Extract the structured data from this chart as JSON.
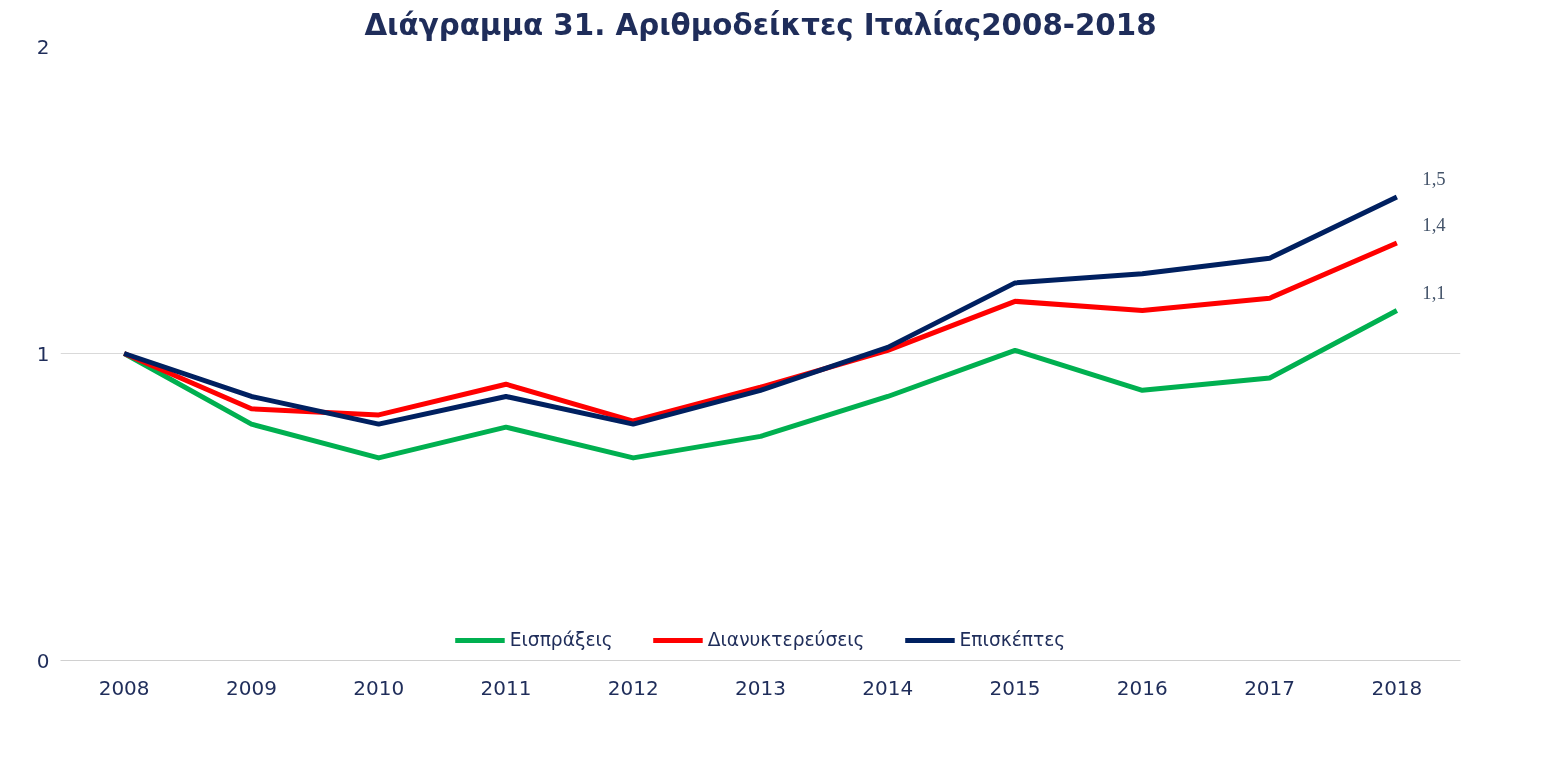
{
  "chart_data": {
    "type": "line",
    "title": "Διάγραμμα 31. Αριθμοδείκτες Ιταλίας2008-2018",
    "categories": [
      "2008",
      "2009",
      "2010",
      "2011",
      "2012",
      "2013",
      "2014",
      "2015",
      "2016",
      "2017",
      "2018"
    ],
    "series": [
      {
        "name": "Εισπράξεις",
        "color": "#00b050",
        "values": [
          1.0,
          0.77,
          0.66,
          0.76,
          0.66,
          0.73,
          0.86,
          1.01,
          0.88,
          0.92,
          1.14
        ],
        "value_labels": [
          null,
          null,
          null,
          null,
          null,
          null,
          null,
          null,
          null,
          null,
          "1,1"
        ]
      },
      {
        "name": "Διανυκτερεύσεις",
        "color": "#ff0000",
        "values": [
          1.0,
          0.82,
          0.8,
          0.9,
          0.78,
          0.89,
          1.01,
          1.17,
          1.14,
          1.18,
          1.36
        ],
        "value_labels": [
          null,
          null,
          null,
          null,
          null,
          null,
          null,
          null,
          null,
          null,
          "1,4"
        ]
      },
      {
        "name": "Επισκέπτες",
        "color": "#002060",
        "values": [
          1.0,
          0.86,
          0.77,
          0.86,
          0.77,
          0.88,
          1.02,
          1.23,
          1.26,
          1.31,
          1.51
        ],
        "value_labels": [
          null,
          null,
          null,
          null,
          null,
          null,
          null,
          null,
          null,
          null,
          "1,5"
        ]
      }
    ],
    "ylim": [
      0,
      2
    ],
    "yticks": [
      0,
      1,
      2
    ],
    "grid": "y",
    "legend": "bottom",
    "marker": "none",
    "line_style": "solid"
  }
}
